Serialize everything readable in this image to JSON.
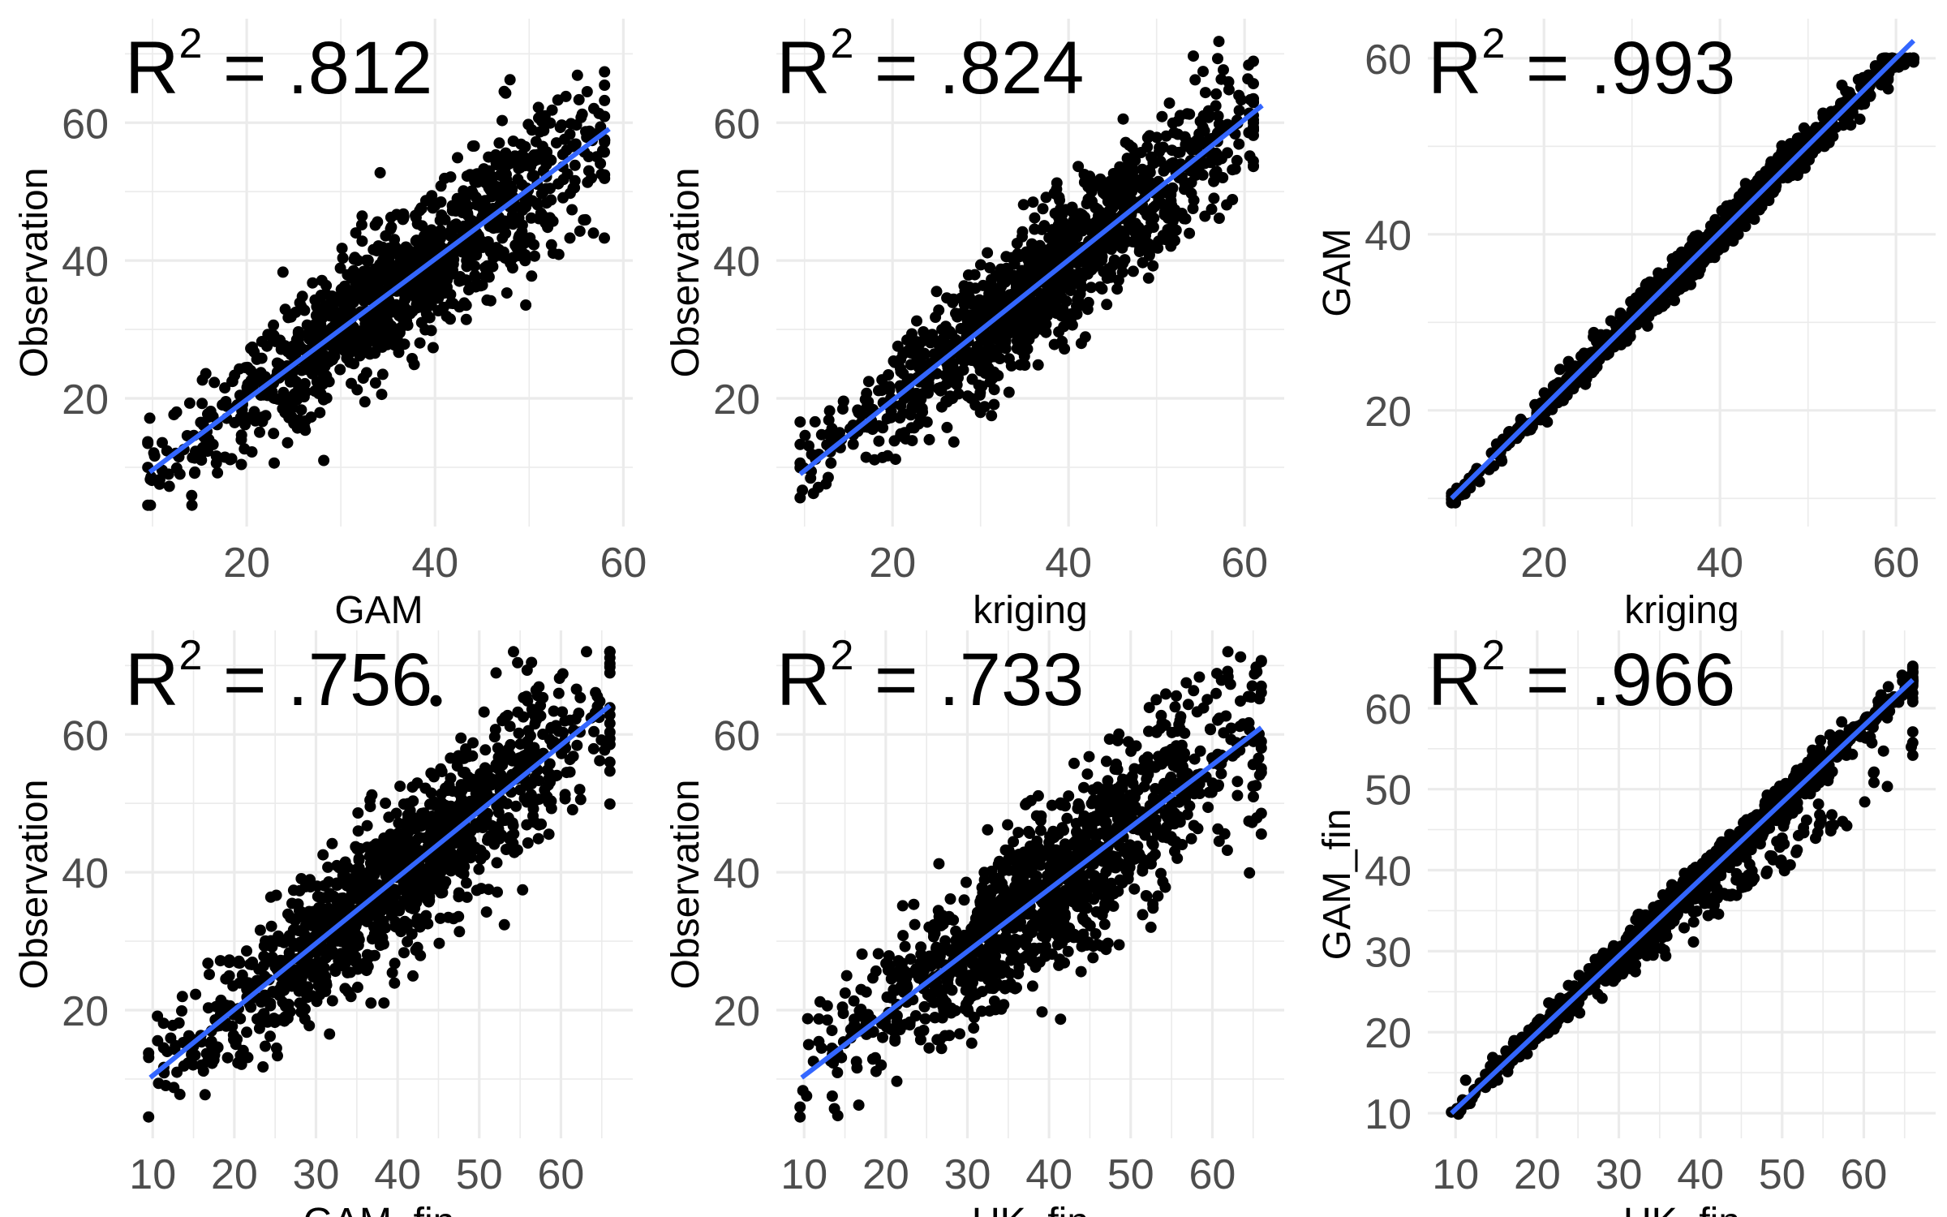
{
  "chart_data": [
    {
      "type": "scatter",
      "xlabel": "GAM",
      "ylabel": "Observation",
      "annotation": {
        "base": "R",
        "sup": "2",
        "value": " = .812"
      },
      "xlim": [
        7.07,
        61.0
      ],
      "ylim": [
        1.4,
        75.1
      ],
      "xticks": [
        20,
        40,
        60
      ],
      "yticks": [
        20,
        40,
        60
      ],
      "xminor": [
        10,
        30,
        50
      ],
      "yminor": [
        10,
        30,
        50,
        70
      ],
      "fit_line": {
        "x": [
          9.7,
          58.5
        ],
        "y": [
          9.3,
          59.1
        ]
      },
      "n_points": 1200,
      "x_range": [
        9.5,
        58
      ],
      "residual_sd": 4.6,
      "y_range": [
        4.5,
        72
      ]
    },
    {
      "type": "scatter",
      "xlabel": "kriging",
      "ylabel": "Observation",
      "annotation": {
        "base": "R",
        "sup": "2",
        "value": " = .824"
      },
      "xlim": [
        6.8,
        64.5
      ],
      "ylim": [
        1.4,
        75.1
      ],
      "xticks": [
        20,
        40,
        60
      ],
      "yticks": [
        20,
        40,
        60
      ],
      "xminor": [
        10,
        30,
        50
      ],
      "yminor": [
        10,
        30,
        50,
        70
      ],
      "fit_line": {
        "x": [
          9.5,
          62
        ],
        "y": [
          9.0,
          62.5
        ]
      },
      "n_points": 1200,
      "x_range": [
        9.5,
        61
      ],
      "residual_sd": 4.5,
      "y_range": [
        4.5,
        72
      ]
    },
    {
      "type": "scatter",
      "xlabel": "kriging",
      "ylabel": "GAM",
      "annotation": {
        "base": "R",
        "sup": "2",
        "value": " = .993"
      },
      "xlim": [
        6.8,
        64.5
      ],
      "ylim": [
        6.8,
        64.5
      ],
      "xticks": [
        20,
        40,
        60
      ],
      "yticks": [
        20,
        40,
        60
      ],
      "xminor": [
        10,
        30,
        50
      ],
      "yminor": [
        10,
        30,
        50
      ],
      "fit_line": {
        "x": [
          9.5,
          62
        ],
        "y": [
          10.0,
          62.0
        ]
      },
      "n_points": 1200,
      "x_range": [
        9.5,
        62
      ],
      "residual_sd": 0.9,
      "y_range": [
        9.5,
        60
      ]
    },
    {
      "type": "scatter",
      "xlabel": "GAM_fin",
      "ylabel": "Observation",
      "annotation": {
        "base": "R",
        "sup": "2",
        "value": " = .756"
      },
      "xlim": [
        6.6,
        68.8
      ],
      "ylim": [
        1.4,
        75.1
      ],
      "xticks": [
        10,
        20,
        30,
        40,
        50,
        60
      ],
      "yticks": [
        20,
        40,
        60
      ],
      "xminor": [
        15,
        25,
        35,
        45,
        55,
        65
      ],
      "yminor": [
        10,
        30,
        50,
        70
      ],
      "fit_line": {
        "x": [
          9.7,
          66
        ],
        "y": [
          10.2,
          64.2
        ]
      },
      "n_points": 1200,
      "x_range": [
        9.5,
        66
      ],
      "residual_sd": 5.3,
      "y_range": [
        4.5,
        72
      ]
    },
    {
      "type": "scatter",
      "xlabel": "UK_fin",
      "ylabel": "Observation",
      "annotation": {
        "base": "R",
        "sup": "2",
        "value": " = .733"
      },
      "xlim": [
        6.6,
        68.8
      ],
      "ylim": [
        1.4,
        75.1
      ],
      "xticks": [
        10,
        20,
        30,
        40,
        50,
        60
      ],
      "yticks": [
        20,
        40,
        60
      ],
      "xminor": [
        15,
        25,
        35,
        45,
        55,
        65
      ],
      "yminor": [
        10,
        30,
        50,
        70
      ],
      "fit_line": {
        "x": [
          9.7,
          66
        ],
        "y": [
          10.2,
          61.0
        ]
      },
      "n_points": 1200,
      "x_range": [
        9.5,
        66
      ],
      "residual_sd": 5.5,
      "y_range": [
        4.5,
        72
      ]
    },
    {
      "type": "scatter",
      "xlabel": "UK_fin",
      "ylabel": "GAM_fin",
      "annotation": {
        "base": "R",
        "sup": "2",
        "value": " = .966"
      },
      "xlim": [
        6.6,
        68.8
      ],
      "ylim": [
        6.9,
        69.6
      ],
      "xticks": [
        10,
        20,
        30,
        40,
        50,
        60
      ],
      "yticks": [
        10,
        20,
        30,
        40,
        50,
        60
      ],
      "xminor": [
        15,
        25,
        35,
        45,
        55,
        65
      ],
      "yminor": [
        15,
        25,
        35,
        45,
        55,
        65
      ],
      "fit_line": {
        "x": [
          9.5,
          66
        ],
        "y": [
          10.0,
          63.5
        ]
      },
      "n_points": 1200,
      "x_range": [
        9.5,
        66
      ],
      "residual_sd": 1.0,
      "y_range": [
        9.5,
        67
      ],
      "offset_group": {
        "fraction": 0.12,
        "shift": -6
      }
    }
  ],
  "colors": {
    "points": "#000000",
    "fit_line": "#3366FF",
    "grid": "#EBEBEB",
    "tick_text": "#4D4D4D"
  }
}
